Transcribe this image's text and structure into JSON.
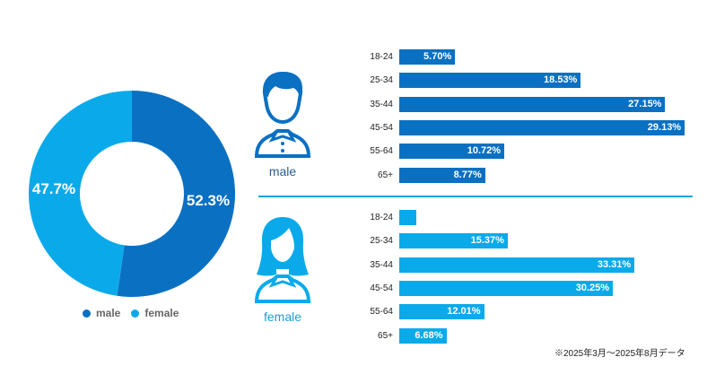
{
  "colors": {
    "male": "#0a70c2",
    "female": "#0aaaea"
  },
  "chart_data": [
    {
      "type": "pie",
      "title": "",
      "slices": [
        {
          "name": "male",
          "value": 52.3,
          "label": "52.3%"
        },
        {
          "name": "female",
          "value": 47.7,
          "label": "47.7%"
        }
      ],
      "legend": [
        "male",
        "female"
      ],
      "legend_position": "bottom"
    },
    {
      "type": "bar",
      "orientation": "horizontal",
      "series_name": "male",
      "categories": [
        "18-24",
        "25-34",
        "35-44",
        "45-54",
        "55-64",
        "65+"
      ],
      "values": [
        5.7,
        18.53,
        27.15,
        29.13,
        10.72,
        8.77
      ],
      "labels": [
        "5.70%",
        "18.53%",
        "27.15%",
        "29.13%",
        "10.72%",
        "8.77%"
      ]
    },
    {
      "type": "bar",
      "orientation": "horizontal",
      "series_name": "female",
      "categories": [
        "18-24",
        "25-34",
        "35-44",
        "45-54",
        "55-64",
        "65+"
      ],
      "values": [
        2.38,
        15.37,
        33.31,
        30.25,
        12.01,
        6.68
      ],
      "labels": [
        "",
        "15.37%",
        "33.31%",
        "30.25%",
        "12.01%",
        "6.68%"
      ]
    }
  ],
  "legend": {
    "male": "male",
    "female": "female"
  },
  "male_label": "male",
  "female_label": "female",
  "note": "※2025年3月～2025年8月データ"
}
